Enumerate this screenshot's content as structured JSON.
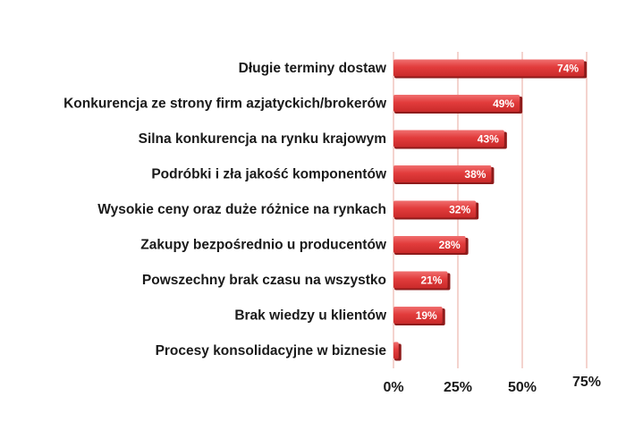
{
  "chart_data": {
    "type": "bar",
    "orientation": "horizontal",
    "title": "",
    "xlabel": "",
    "ylabel": "",
    "categories": [
      "Długie terminy dostaw",
      "Konkurencja ze strony firm azjatyckich/brokerów",
      "Silna konkurencja na rynku krajowym",
      "Podróbki i zła jakość komponentów",
      "Wysokie ceny oraz duże różnice na rynkach",
      "Zakupy bezpośrednio u producentów",
      "Powszechny brak czasu na wszystko",
      "Brak wiedzy u klientów",
      "Procesy konsolidacyjne w biznesie"
    ],
    "values": [
      74,
      49,
      43,
      38,
      32,
      28,
      21,
      19,
      2
    ],
    "value_labels": [
      "74%",
      "49%",
      "43%",
      "38%",
      "32%",
      "28%",
      "21%",
      "19%",
      ""
    ],
    "xlim": [
      0,
      75
    ],
    "ticks": [
      0,
      25,
      50,
      75
    ],
    "tick_labels": [
      "0%",
      "25%",
      "50%",
      "75%"
    ],
    "grid": "vertical",
    "legend": "none",
    "colors": {
      "bar_main": "#e23c3c",
      "bar_light": "#ef6a6a",
      "bar_shadow": "#8e1b1b",
      "gridline": "#e8a79c",
      "text": "#1a1a1a"
    }
  }
}
